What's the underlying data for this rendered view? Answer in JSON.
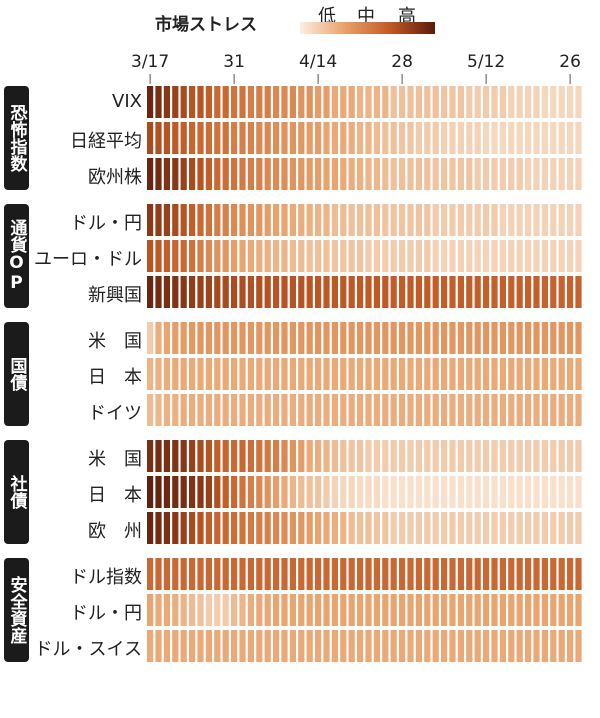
{
  "legend": {
    "title": "市場ストレス",
    "levels": [
      "低",
      "中",
      "高"
    ],
    "colors": [
      "#fbeee2",
      "#e8a16a",
      "#c25a25",
      "#5a1c0c"
    ]
  },
  "chart_data": {
    "type": "heatmap",
    "x_labels": [
      "3/17",
      "31",
      "4/14",
      "28",
      "5/12",
      "26"
    ],
    "x_label_columns": [
      0,
      10,
      20,
      30,
      40,
      50
    ],
    "value_scale": [
      0,
      1
    ],
    "groups": [
      {
        "name": "恐怖指数",
        "rows": [
          {
            "label": "VIX",
            "values": [
              0.95,
              0.9,
              0.85,
              0.8,
              0.75,
              0.7,
              0.7,
              0.65,
              0.6,
              0.6,
              0.55,
              0.55,
              0.5,
              0.5,
              0.5,
              0.45,
              0.45,
              0.45,
              0.4,
              0.4,
              0.35,
              0.35,
              0.3,
              0.3,
              0.3,
              0.25,
              0.25,
              0.25,
              0.25,
              0.2,
              0.2,
              0.2,
              0.2,
              0.2,
              0.2,
              0.18,
              0.18,
              0.18,
              0.15,
              0.15,
              0.15,
              0.15,
              0.15,
              0.12,
              0.12,
              0.12,
              0.12,
              0.1,
              0.1,
              0.1,
              0.1,
              0.1
            ]
          },
          {
            "label": "日経平均",
            "values": [
              0.75,
              0.72,
              0.7,
              0.68,
              0.65,
              0.62,
              0.6,
              0.58,
              0.55,
              0.55,
              0.5,
              0.5,
              0.48,
              0.45,
              0.45,
              0.42,
              0.4,
              0.4,
              0.38,
              0.35,
              0.35,
              0.32,
              0.3,
              0.3,
              0.28,
              0.25,
              0.25,
              0.22,
              0.2,
              0.2,
              0.18,
              0.18,
              0.15,
              0.15,
              0.15,
              0.13,
              0.13,
              0.12,
              0.12,
              0.12,
              0.1,
              0.1,
              0.1,
              0.1,
              0.1,
              0.1,
              0.1,
              0.1,
              0.1,
              0.1,
              0.1,
              0.1
            ]
          },
          {
            "label": "欧州株",
            "values": [
              0.95,
              0.92,
              0.88,
              0.85,
              0.8,
              0.75,
              0.7,
              0.65,
              0.6,
              0.58,
              0.55,
              0.52,
              0.5,
              0.48,
              0.45,
              0.43,
              0.42,
              0.4,
              0.38,
              0.36,
              0.35,
              0.33,
              0.32,
              0.3,
              0.28,
              0.27,
              0.25,
              0.24,
              0.22,
              0.2,
              0.2,
              0.2,
              0.2,
              0.2,
              0.18,
              0.18,
              0.18,
              0.18,
              0.18,
              0.15,
              0.15,
              0.15,
              0.15,
              0.15,
              0.15,
              0.12,
              0.12,
              0.12,
              0.12,
              0.12,
              0.12,
              0.12
            ]
          }
        ]
      },
      {
        "name": "通貨OP",
        "rows": [
          {
            "label": "ドル・円",
            "values": [
              0.85,
              0.82,
              0.8,
              0.75,
              0.7,
              0.65,
              0.6,
              0.55,
              0.5,
              0.48,
              0.45,
              0.42,
              0.4,
              0.38,
              0.35,
              0.33,
              0.32,
              0.3,
              0.28,
              0.27,
              0.25,
              0.25,
              0.22,
              0.22,
              0.2,
              0.2,
              0.2,
              0.2,
              0.18,
              0.18,
              0.18,
              0.18,
              0.18,
              0.18,
              0.15,
              0.15,
              0.15,
              0.15,
              0.15,
              0.15,
              0.15,
              0.15,
              0.12,
              0.12,
              0.12,
              0.12,
              0.12,
              0.12,
              0.12,
              0.12,
              0.12,
              0.12
            ]
          },
          {
            "label": "ユーロ・ドル",
            "values": [
              0.7,
              0.68,
              0.65,
              0.62,
              0.6,
              0.55,
              0.5,
              0.45,
              0.4,
              0.38,
              0.35,
              0.32,
              0.3,
              0.28,
              0.27,
              0.25,
              0.25,
              0.22,
              0.22,
              0.2,
              0.2,
              0.2,
              0.18,
              0.18,
              0.18,
              0.18,
              0.15,
              0.15,
              0.15,
              0.15,
              0.15,
              0.15,
              0.15,
              0.15,
              0.12,
              0.12,
              0.12,
              0.12,
              0.12,
              0.12,
              0.12,
              0.12,
              0.12,
              0.12,
              0.12,
              0.12,
              0.12,
              0.12,
              0.12,
              0.12,
              0.12,
              0.12
            ]
          },
          {
            "label": "新興国",
            "values": [
              0.95,
              0.92,
              0.9,
              0.88,
              0.85,
              0.82,
              0.8,
              0.78,
              0.76,
              0.75,
              0.74,
              0.73,
              0.72,
              0.72,
              0.71,
              0.7,
              0.7,
              0.7,
              0.7,
              0.69,
              0.69,
              0.68,
              0.68,
              0.68,
              0.68,
              0.67,
              0.67,
              0.67,
              0.67,
              0.66,
              0.66,
              0.66,
              0.66,
              0.66,
              0.65,
              0.65,
              0.65,
              0.65,
              0.65,
              0.65,
              0.64,
              0.64,
              0.64,
              0.64,
              0.64,
              0.64,
              0.64,
              0.63,
              0.63,
              0.63,
              0.63,
              0.63
            ]
          }
        ]
      },
      {
        "name": "国債",
        "rows": [
          {
            "label": "米　国",
            "values": [
              0.15,
              0.28,
              0.32,
              0.35,
              0.36,
              0.37,
              0.38,
              0.38,
              0.38,
              0.38,
              0.38,
              0.38,
              0.38,
              0.38,
              0.38,
              0.38,
              0.38,
              0.38,
              0.38,
              0.38,
              0.38,
              0.38,
              0.38,
              0.38,
              0.38,
              0.38,
              0.38,
              0.38,
              0.38,
              0.38,
              0.38,
              0.38,
              0.38,
              0.38,
              0.38,
              0.38,
              0.38,
              0.38,
              0.38,
              0.38,
              0.38,
              0.38,
              0.38,
              0.38,
              0.38,
              0.38,
              0.38,
              0.38,
              0.38,
              0.38,
              0.38,
              0.38
            ]
          },
          {
            "label": "日　本",
            "values": [
              0.25,
              0.27,
              0.28,
              0.3,
              0.3,
              0.3,
              0.3,
              0.3,
              0.3,
              0.3,
              0.3,
              0.3,
              0.3,
              0.3,
              0.3,
              0.3,
              0.3,
              0.3,
              0.3,
              0.3,
              0.3,
              0.3,
              0.3,
              0.3,
              0.3,
              0.3,
              0.3,
              0.3,
              0.3,
              0.3,
              0.3,
              0.3,
              0.3,
              0.3,
              0.3,
              0.3,
              0.3,
              0.3,
              0.3,
              0.3,
              0.3,
              0.3,
              0.3,
              0.3,
              0.3,
              0.3,
              0.3,
              0.3,
              0.3,
              0.3,
              0.3,
              0.3
            ]
          },
          {
            "label": "ドイツ",
            "values": [
              0.22,
              0.24,
              0.26,
              0.27,
              0.28,
              0.28,
              0.28,
              0.28,
              0.28,
              0.28,
              0.28,
              0.28,
              0.28,
              0.28,
              0.28,
              0.28,
              0.28,
              0.28,
              0.28,
              0.28,
              0.28,
              0.28,
              0.28,
              0.28,
              0.28,
              0.28,
              0.28,
              0.28,
              0.28,
              0.28,
              0.28,
              0.28,
              0.28,
              0.28,
              0.28,
              0.28,
              0.28,
              0.28,
              0.28,
              0.28,
              0.28,
              0.28,
              0.28,
              0.28,
              0.28,
              0.28,
              0.28,
              0.28,
              0.28,
              0.28,
              0.28,
              0.28
            ]
          }
        ]
      },
      {
        "name": "社債",
        "rows": [
          {
            "label": "米　国",
            "values": [
              0.9,
              0.92,
              0.9,
              0.88,
              0.85,
              0.8,
              0.75,
              0.7,
              0.65,
              0.62,
              0.6,
              0.6,
              0.58,
              0.55,
              0.52,
              0.5,
              0.45,
              0.4,
              0.35,
              0.3,
              0.28,
              0.25,
              0.22,
              0.2,
              0.18,
              0.18,
              0.15,
              0.15,
              0.15,
              0.15,
              0.15,
              0.15,
              0.15,
              0.15,
              0.15,
              0.15,
              0.15,
              0.15,
              0.15,
              0.15,
              0.15,
              0.15,
              0.15,
              0.15,
              0.15,
              0.15,
              0.15,
              0.15,
              0.15,
              0.15,
              0.15,
              0.15
            ]
          },
          {
            "label": "日　本",
            "values": [
              0.98,
              0.96,
              0.94,
              0.92,
              0.9,
              0.88,
              0.85,
              0.8,
              0.72,
              0.65,
              0.6,
              0.55,
              0.5,
              0.45,
              0.4,
              0.35,
              0.3,
              0.25,
              0.22,
              0.2,
              0.18,
              0.15,
              0.12,
              0.1,
              0.1,
              0.08,
              0.08,
              0.08,
              0.06,
              0.06,
              0.06,
              0.06,
              0.06,
              0.06,
              0.06,
              0.06,
              0.06,
              0.06,
              0.06,
              0.06,
              0.06,
              0.06,
              0.06,
              0.06,
              0.06,
              0.06,
              0.06,
              0.06,
              0.06,
              0.06,
              0.06,
              0.06
            ]
          },
          {
            "label": "欧　州",
            "values": [
              0.95,
              0.92,
              0.9,
              0.85,
              0.8,
              0.75,
              0.7,
              0.65,
              0.62,
              0.6,
              0.58,
              0.55,
              0.52,
              0.5,
              0.48,
              0.45,
              0.43,
              0.4,
              0.38,
              0.35,
              0.32,
              0.3,
              0.28,
              0.25,
              0.22,
              0.2,
              0.2,
              0.18,
              0.18,
              0.15,
              0.15,
              0.15,
              0.15,
              0.15,
              0.15,
              0.15,
              0.15,
              0.15,
              0.15,
              0.15,
              0.15,
              0.15,
              0.15,
              0.15,
              0.15,
              0.15,
              0.15,
              0.15,
              0.15,
              0.15,
              0.15,
              0.15
            ]
          }
        ]
      },
      {
        "name": "安全資産",
        "rows": [
          {
            "label": "ドル指数",
            "values": [
              0.6,
              0.6,
              0.6,
              0.6,
              0.6,
              0.6,
              0.6,
              0.6,
              0.6,
              0.6,
              0.6,
              0.6,
              0.6,
              0.6,
              0.6,
              0.6,
              0.6,
              0.6,
              0.6,
              0.6,
              0.6,
              0.6,
              0.6,
              0.6,
              0.6,
              0.6,
              0.6,
              0.6,
              0.6,
              0.6,
              0.6,
              0.6,
              0.6,
              0.6,
              0.6,
              0.6,
              0.6,
              0.6,
              0.6,
              0.6,
              0.6,
              0.6,
              0.6,
              0.6,
              0.6,
              0.6,
              0.6,
              0.6,
              0.6,
              0.6,
              0.6,
              0.6
            ]
          },
          {
            "label": "ドル・円",
            "values": [
              0.32,
              0.3,
              0.3,
              0.28,
              0.25,
              0.22,
              0.2,
              0.15,
              0.15,
              0.15,
              0.22,
              0.25,
              0.28,
              0.3,
              0.3,
              0.32,
              0.32,
              0.32,
              0.32,
              0.32,
              0.32,
              0.32,
              0.32,
              0.32,
              0.32,
              0.32,
              0.32,
              0.32,
              0.32,
              0.32,
              0.32,
              0.32,
              0.32,
              0.32,
              0.32,
              0.32,
              0.32,
              0.32,
              0.32,
              0.32,
              0.32,
              0.32,
              0.32,
              0.32,
              0.32,
              0.32,
              0.32,
              0.32,
              0.32,
              0.32,
              0.32,
              0.32
            ]
          },
          {
            "label": "ドル・スイス",
            "values": [
              0.3,
              0.3,
              0.3,
              0.3,
              0.3,
              0.3,
              0.3,
              0.3,
              0.3,
              0.3,
              0.3,
              0.3,
              0.3,
              0.3,
              0.3,
              0.3,
              0.3,
              0.3,
              0.3,
              0.3,
              0.3,
              0.3,
              0.3,
              0.3,
              0.3,
              0.3,
              0.3,
              0.3,
              0.3,
              0.3,
              0.3,
              0.3,
              0.3,
              0.3,
              0.3,
              0.3,
              0.3,
              0.3,
              0.3,
              0.3,
              0.3,
              0.3,
              0.3,
              0.3,
              0.3,
              0.3,
              0.3,
              0.3,
              0.3,
              0.3,
              0.3,
              0.3
            ]
          }
        ]
      }
    ]
  }
}
